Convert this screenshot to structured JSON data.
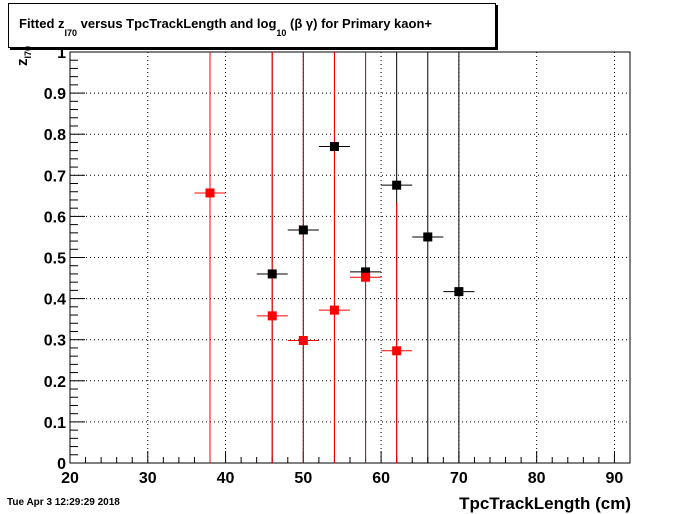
{
  "title": {
    "part1": "Fitted  z",
    "sub1": "I70",
    "part2": "  versus TpcTrackLength and log",
    "sub2": "10",
    "part3": " (β γ) for Primary kaon+"
  },
  "stamp": "Tue Apr  3 12:29:29 2018",
  "colors": {
    "black_series": "#000000",
    "red_series": "#ff0000",
    "grid": "#000000"
  },
  "chart_data": {
    "type": "scatter",
    "title": "Fitted z_I70 versus TpcTrackLength and log_10 (β γ) for Primary kaon+",
    "xlabel": "TpcTrackLength (cm)",
    "ylabel": "z",
    "ylabel_sub": "I70",
    "xlim": [
      20,
      92
    ],
    "ylim": [
      0,
      1
    ],
    "xticks": [
      20,
      30,
      40,
      50,
      60,
      70,
      80,
      90
    ],
    "yticks": [
      0,
      0.1,
      0.2,
      0.3,
      0.4,
      0.5,
      0.6,
      0.7,
      0.8,
      0.9,
      1
    ],
    "grid": true,
    "series": [
      {
        "color": "#000000",
        "points": [
          {
            "x": 46,
            "y": 0.46,
            "xerr": 2,
            "yerr_lo": 0.46,
            "yerr_hi": 0.54
          },
          {
            "x": 50,
            "y": 0.567,
            "xerr": 2,
            "yerr_lo": 0.567,
            "yerr_hi": 0.433
          },
          {
            "x": 54,
            "y": 0.77,
            "xerr": 2,
            "yerr_lo": 0.77,
            "yerr_hi": 0.23
          },
          {
            "x": 58,
            "y": 0.465,
            "xerr": 2,
            "yerr_lo": 0.465,
            "yerr_hi": 0.535
          },
          {
            "x": 62,
            "y": 0.676,
            "xerr": 2,
            "yerr_lo": 0.676,
            "yerr_hi": 0.324
          },
          {
            "x": 66,
            "y": 0.55,
            "xerr": 2,
            "yerr_lo": 0.55,
            "yerr_hi": 0.45
          },
          {
            "x": 70,
            "y": 0.417,
            "xerr": 2,
            "yerr_lo": 0.417,
            "yerr_hi": 0.583
          }
        ]
      },
      {
        "color": "#ff0000",
        "points": [
          {
            "x": 38,
            "y": 0.657,
            "xerr": 2,
            "yerr_lo": 0.657,
            "yerr_hi": 0.343
          },
          {
            "x": 46,
            "y": 0.358,
            "xerr": 2,
            "yerr_lo": 0.358,
            "yerr_hi": 0.642
          },
          {
            "x": 50,
            "y": 0.298,
            "xerr": 2,
            "yerr_lo": 0.298,
            "yerr_hi": 0.702
          },
          {
            "x": 54,
            "y": 0.372,
            "xerr": 2,
            "yerr_lo": 0.372,
            "yerr_hi": 0.628
          },
          {
            "x": 58,
            "y": 0.452,
            "xerr": 2,
            "yerr_lo": 0.452,
            "yerr_hi": 0.548
          },
          {
            "x": 62,
            "y": 0.273,
            "xerr": 2,
            "yerr_lo": 0.273,
            "yerr_hi": 0.36
          }
        ]
      }
    ]
  }
}
